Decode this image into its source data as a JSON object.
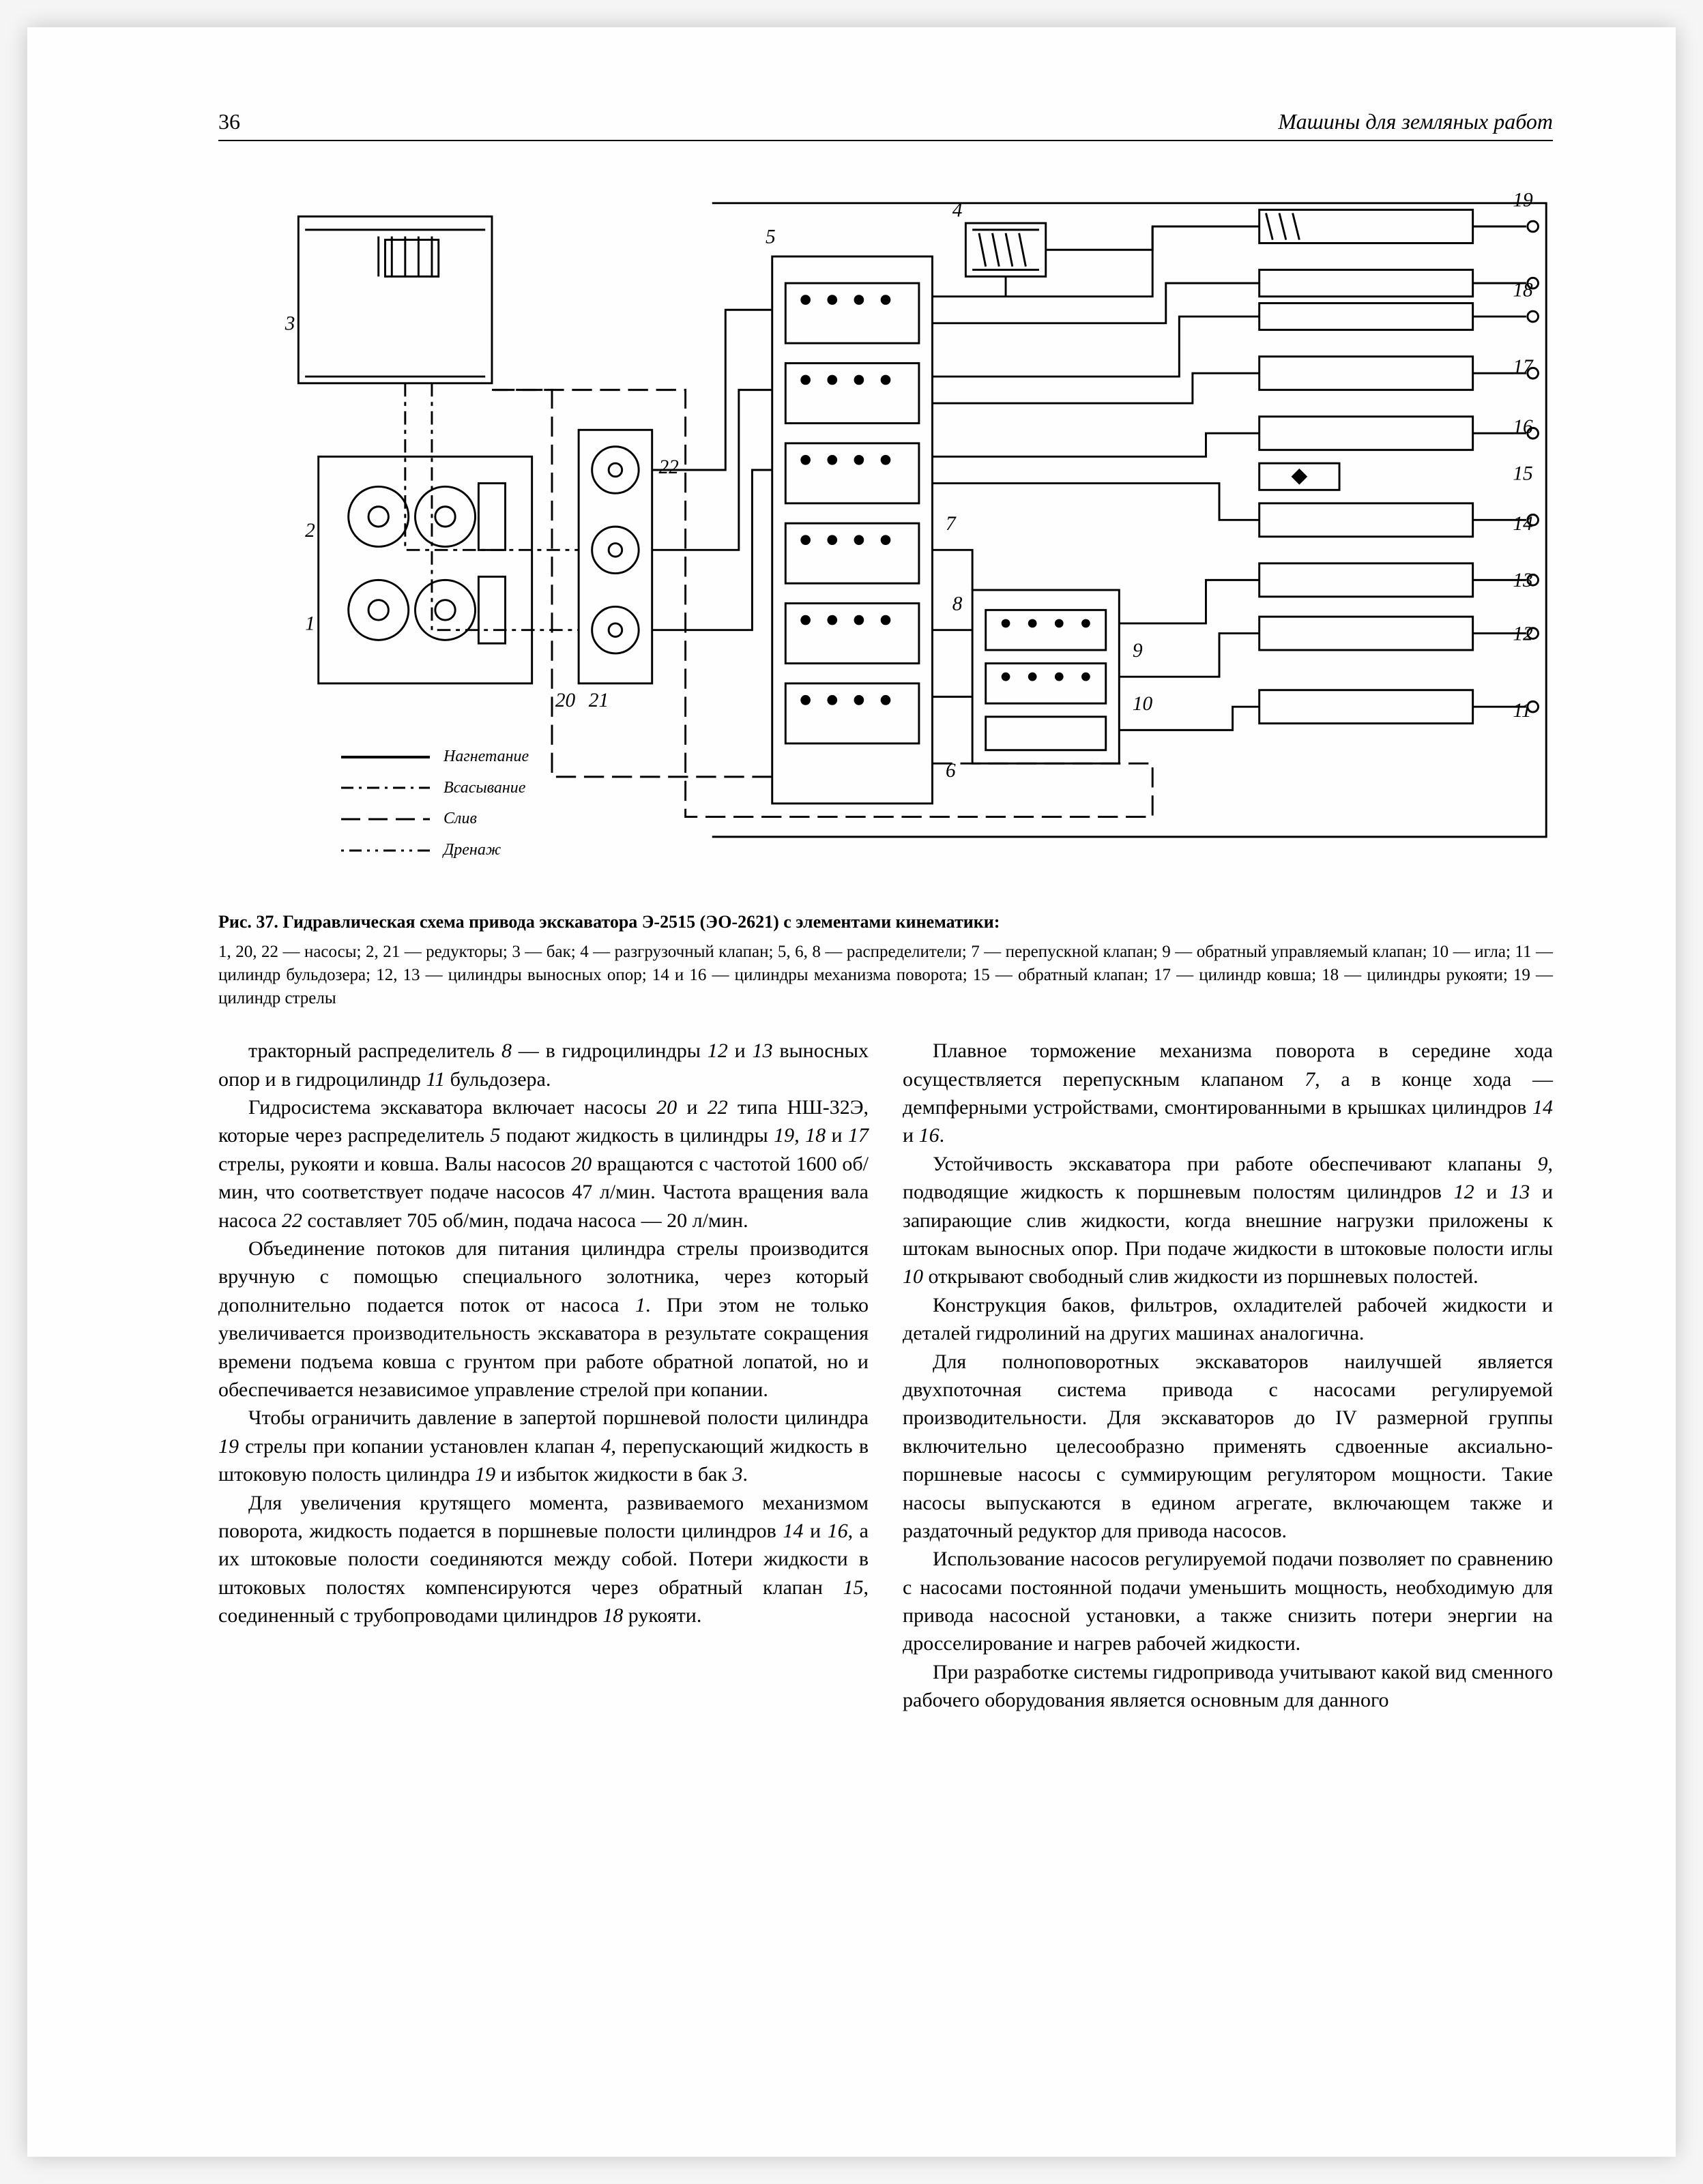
{
  "page_number": "36",
  "running_title": "Машины для земляных работ",
  "figure": {
    "labels": [
      "1",
      "2",
      "3",
      "4",
      "5",
      "6",
      "7",
      "8",
      "9",
      "10",
      "11",
      "12",
      "13",
      "14",
      "15",
      "16",
      "17",
      "18",
      "19",
      "20",
      "21",
      "22"
    ],
    "legend_items": [
      {
        "style": "solid",
        "label": "Нагнетание"
      },
      {
        "style": "dash-dot",
        "label": "Всасывание"
      },
      {
        "style": "long-dash",
        "label": "Слив"
      },
      {
        "style": "dot-dash-dot",
        "label": "Дренаж"
      }
    ],
    "line_color": "#000000",
    "background": "#fefefe"
  },
  "caption_title": "Рис. 37. Гидравлическая схема привода экскаватора Э-2515 (ЭО-2621) с элементами кинематики:",
  "caption_legend": "1, 20, 22 — насосы; 2, 21 — редукторы; 3 — бак; 4 — разгрузочный клапан; 5, 6, 8 — распределители; 7 — перепускной клапан; 9 — обратный управляемый клапан; 10 — игла; 11 — цилиндр бульдозера; 12, 13 — цилиндры выносных опор; 14 и 16 — цилиндры механизма поворота; 15 — обратный клапан; 17 — цилиндр ковша; 18 — цилиндры рукояти; 19 — цилиндр стрелы",
  "col_left": [
    "тракторный распределитель <i>8</i> — в гидроцилиндры <i>12</i> и <i>13</i> выносных опор и в гидроцилиндр <i>11</i> бульдозера.",
    "Гидросистема экскаватора включает насосы <i>20</i> и <i>22</i> типа НШ-32Э, которые через распределитель <i>5</i> подают жидкость в цилиндры <i>19, 18</i> и <i>17</i> стрелы, рукояти и ковша. Валы насосов <i>20</i> вращаются с частотой 1600 об/мин, что соответствует подаче насосов 47 л/мин. Частота вращения вала насоса <i>22</i> составляет 705 об/мин, подача насоса — 20 л/мин.",
    "Объединение потоков для питания цилиндра стрелы производится вручную с помощью специального золотника, через который дополнительно подается поток от насоса <i>1</i>. При этом не только увеличивается производительность экскаватора в результате сокращения времени подъема ковша с грунтом при работе обратной лопатой, но и обеспечивается независимое управление стрелой при копании.",
    "Чтобы ограничить давление в запертой поршневой полости цилиндра <i>19</i> стрелы при копании установлен клапан <i>4</i>, перепускающий жидкость в штоковую полость цилиндра <i>19</i> и избыток жидкости в бак <i>3</i>.",
    "Для увеличения крутящего момента, развиваемого механизмом поворота, жидкость подается в поршневые полости цилиндров <i>14</i> и <i>16</i>, а их штоковые полости соединяются между собой. Потери жидкости в штоковых полостях компенсируются через обратный клапан <i>15</i>, соединенный с трубопроводами цилиндров <i>18</i> рукояти."
  ],
  "col_right": [
    "Плавное торможение механизма поворота в середине хода осуществляется перепускным клапаном <i>7</i>, а в конце хода — демпферными устройствами, смонтированными в крышках цилиндров <i>14</i> и <i>16</i>.",
    "Устойчивость экскаватора при работе обеспечивают клапаны <i>9</i>, подводящие жидкость к поршневым полостям цилиндров <i>12</i> и <i>13</i> и запирающие слив жидкости, когда внешние нагрузки приложены к штокам выносных опор. При подаче жидкости в штоковые полости иглы <i>10</i> открывают свободный слив жидкости из поршневых полостей.",
    "Конструкция баков, фильтров, охладителей рабочей жидкости и деталей гидролиний на других машинах аналогична.",
    "Для полноповоротных экскаваторов наилучшей является двухпоточная система привода с насосами регулируемой производительности. Для экскаваторов до IV размерной группы включительно целесообразно применять сдвоенные аксиально-поршневые насосы с суммирующим регулятором мощности. Такие насосы выпускаются в едином агрегате, включающем также и раздаточный редуктор для привода насосов.",
    "Использование насосов регулируемой подачи позволяет по сравнению с насосами постоянной подачи уменьшить мощность, необходимую для привода насосной установки, а также снизить потери энергии на дросселирование и нагрев рабочей жидкости.",
    "При разработке системы гидропривода учитывают какой вид сменного рабочего оборудования является основным для данного"
  ]
}
